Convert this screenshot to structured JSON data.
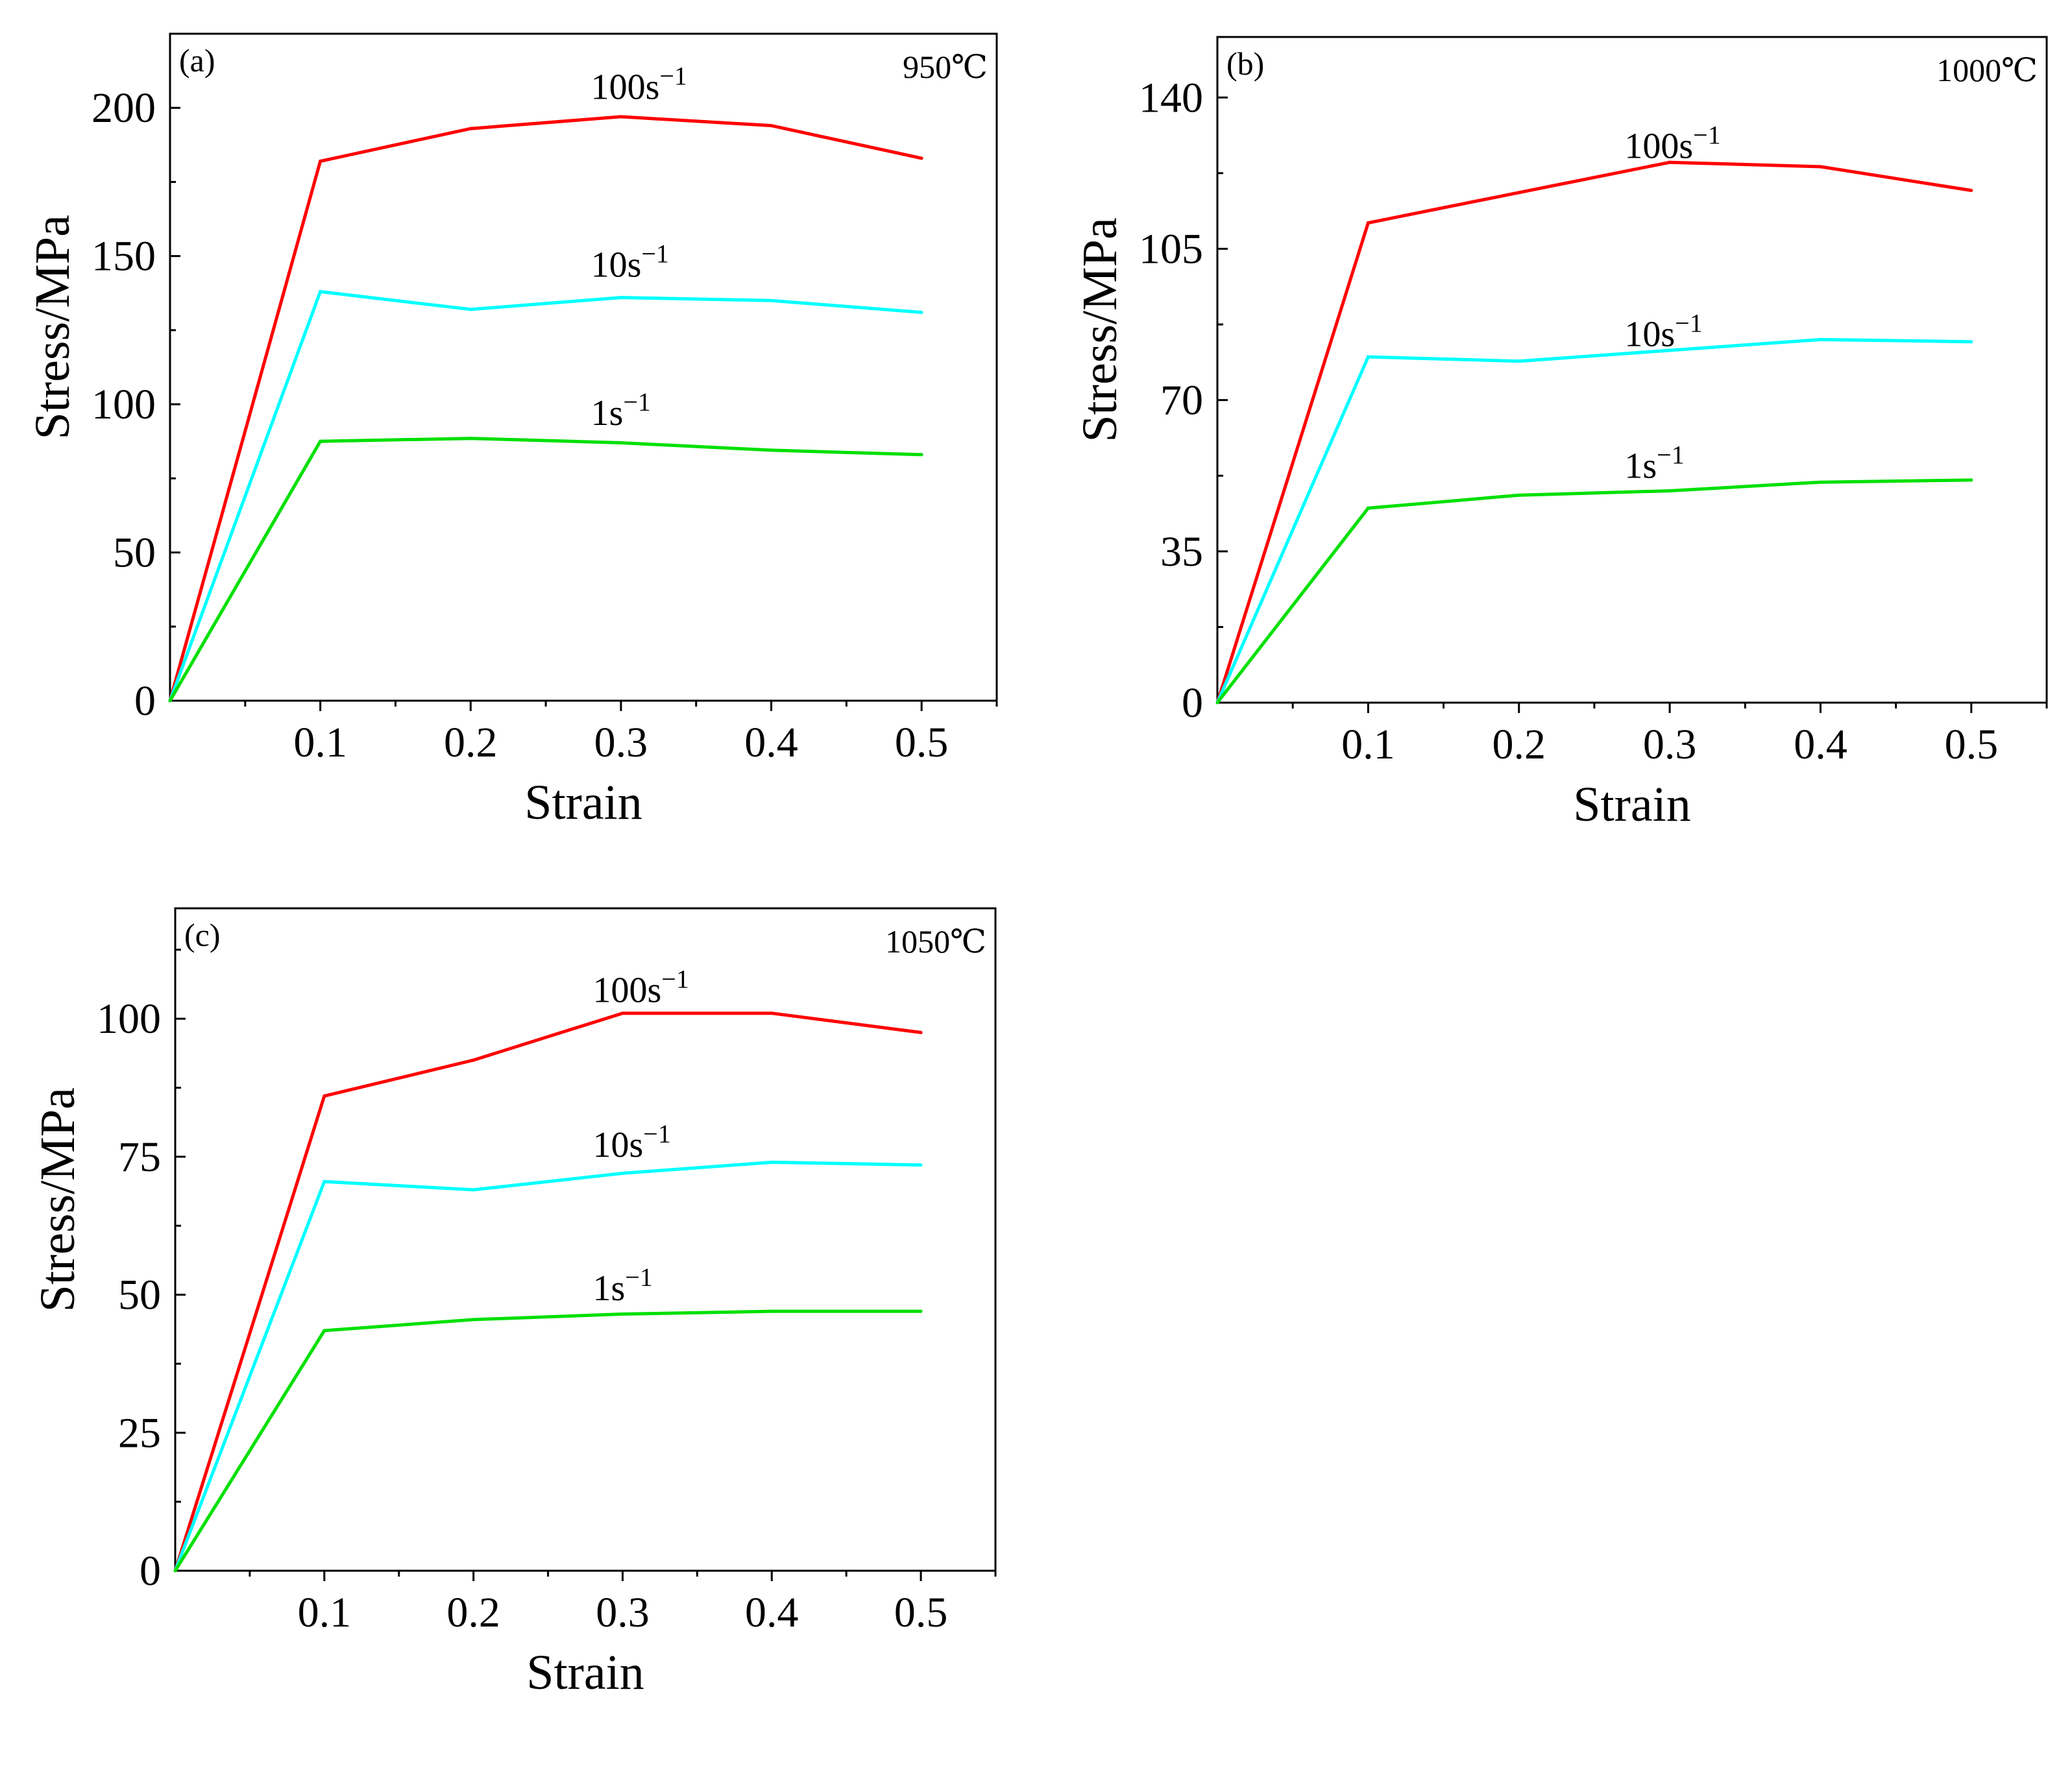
{
  "figure": {
    "colors": {
      "1s": "#00e000",
      "10s": "#00ffff",
      "100s": "#ff0000",
      "axis": "#000000"
    }
  },
  "chart_data": [
    {
      "type": "line",
      "panel_label": "(a)",
      "temperature": "950℃",
      "xlabel": "Strain",
      "ylabel": "Stress/MPa",
      "xlim": [
        0,
        0.55
      ],
      "ylim": [
        0,
        225
      ],
      "x_ticks": [
        0.1,
        0.2,
        0.3,
        0.4,
        0.5
      ],
      "x_tick_labels": [
        "0.1",
        "0.2",
        "0.3",
        "0.4",
        "0.5"
      ],
      "y_ticks": [
        0,
        50,
        100,
        150,
        200
      ],
      "y_tick_labels": [
        "0",
        "50",
        "100",
        "150",
        "200"
      ],
      "y_minor_step": 25,
      "x": [
        0,
        0.1,
        0.2,
        0.3,
        0.4,
        0.5
      ],
      "series": [
        {
          "key": "100s",
          "name": "100s",
          "sup": "−1",
          "color": "#ff0000",
          "values": [
            0,
            182,
            193,
            197,
            194,
            183
          ],
          "label_x": 0.28,
          "label_y": 203
        },
        {
          "key": "10s",
          "name": "10s",
          "sup": "−1",
          "color": "#00ffff",
          "values": [
            0,
            138,
            132,
            136,
            135,
            131
          ],
          "label_x": 0.28,
          "label_y": 143
        },
        {
          "key": "1s",
          "name": "1s",
          "sup": "−1",
          "color": "#00e000",
          "values": [
            0,
            87.5,
            88.5,
            87,
            84.5,
            83
          ],
          "label_x": 0.28,
          "label_y": 93
        }
      ]
    },
    {
      "type": "line",
      "panel_label": "(b)",
      "temperature": "1000℃",
      "xlabel": "Strain",
      "ylabel": "Stress/MPa",
      "xlim": [
        0,
        0.55
      ],
      "ylim": [
        0,
        154
      ],
      "x_ticks": [
        0.1,
        0.2,
        0.3,
        0.4,
        0.5
      ],
      "x_tick_labels": [
        "0.1",
        "0.2",
        "0.3",
        "0.4",
        "0.5"
      ],
      "y_ticks": [
        0,
        35,
        70,
        105,
        140
      ],
      "y_tick_labels": [
        "0",
        "35",
        "70",
        "105",
        "140"
      ],
      "y_minor_step": 17.5,
      "x": [
        0,
        0.1,
        0.2,
        0.3,
        0.4,
        0.5
      ],
      "series": [
        {
          "key": "100s",
          "name": "100s",
          "sup": "−1",
          "color": "#ff0000",
          "values": [
            0,
            111,
            118,
            125,
            124,
            118.5
          ],
          "label_x": 0.27,
          "label_y": 126
        },
        {
          "key": "10s",
          "name": "10s",
          "sup": "−1",
          "color": "#00ffff",
          "values": [
            0,
            80,
            79,
            81.5,
            84,
            83.5
          ],
          "label_x": 0.27,
          "label_y": 82.5
        },
        {
          "key": "1s",
          "name": "1s",
          "sup": "−1",
          "color": "#00e000",
          "values": [
            0,
            45,
            48,
            49,
            51,
            51.5
          ],
          "label_x": 0.27,
          "label_y": 52
        }
      ]
    },
    {
      "type": "line",
      "panel_label": "(c)",
      "temperature": "1050℃",
      "xlabel": "Strain",
      "ylabel": "Stress/MPa",
      "xlim": [
        0,
        0.55
      ],
      "ylim": [
        0,
        120
      ],
      "x_ticks": [
        0.1,
        0.2,
        0.3,
        0.4,
        0.5
      ],
      "x_tick_labels": [
        "0.1",
        "0.2",
        "0.3",
        "0.4",
        "0.5"
      ],
      "y_ticks": [
        0,
        25,
        50,
        75,
        100
      ],
      "y_tick_labels": [
        "0",
        "25",
        "50",
        "75",
        "100"
      ],
      "y_minor_step": 12.5,
      "x": [
        0,
        0.1,
        0.2,
        0.3,
        0.4,
        0.5
      ],
      "series": [
        {
          "key": "100s",
          "name": "100s",
          "sup": "−1",
          "color": "#ff0000",
          "values": [
            0,
            86,
            92.5,
            101,
            101,
            97.5
          ],
          "label_x": 0.28,
          "label_y": 103
        },
        {
          "key": "10s",
          "name": "10s",
          "sup": "−1",
          "color": "#00ffff",
          "values": [
            0,
            70.5,
            69,
            72,
            74,
            73.5
          ],
          "label_x": 0.28,
          "label_y": 75
        },
        {
          "key": "1s",
          "name": "1s",
          "sup": "−1",
          "color": "#00e000",
          "values": [
            0,
            43.5,
            45.5,
            46.5,
            47,
            47
          ],
          "label_x": 0.28,
          "label_y": 49
        }
      ]
    }
  ]
}
